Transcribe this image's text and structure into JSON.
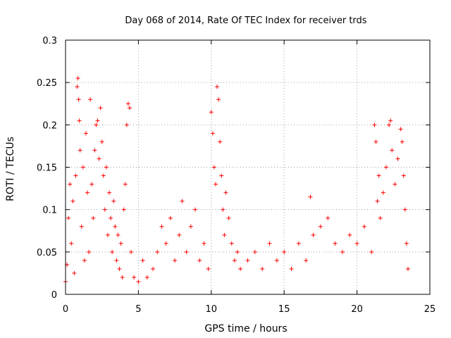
{
  "chart_data": {
    "type": "scatter",
    "title": "Day 068 of 2014, Rate Of TEC Index for receiver trds",
    "xlabel": "GPS time / hours",
    "ylabel": "ROTI / TECUs",
    "xlim": [
      0,
      25
    ],
    "ylim": [
      0,
      0.3
    ],
    "x_ticks": [
      0,
      5,
      10,
      15,
      20,
      25
    ],
    "x_tick_labels": [
      "0",
      "5",
      "10",
      "15",
      "20",
      "25"
    ],
    "y_ticks": [
      0,
      0.05,
      0.1,
      0.15,
      0.2,
      0.25,
      0.3
    ],
    "y_tick_labels": [
      "0",
      "0.05",
      "0.1",
      "0.15",
      "0.2",
      "0.25",
      "0.3"
    ],
    "grid": true,
    "marker": "+",
    "series": [
      {
        "name": "ROTI",
        "color": "#ff0000",
        "points": [
          [
            0.0,
            0.015
          ],
          [
            0.1,
            0.035
          ],
          [
            0.2,
            0.09
          ],
          [
            0.3,
            0.13
          ],
          [
            0.4,
            0.06
          ],
          [
            0.5,
            0.11
          ],
          [
            0.6,
            0.025
          ],
          [
            0.7,
            0.14
          ],
          [
            0.8,
            0.245
          ],
          [
            0.85,
            0.255
          ],
          [
            0.9,
            0.23
          ],
          [
            0.95,
            0.205
          ],
          [
            1.0,
            0.17
          ],
          [
            1.1,
            0.08
          ],
          [
            1.2,
            0.15
          ],
          [
            1.3,
            0.04
          ],
          [
            1.4,
            0.19
          ],
          [
            1.5,
            0.12
          ],
          [
            1.6,
            0.05
          ],
          [
            1.7,
            0.23
          ],
          [
            1.8,
            0.13
          ],
          [
            1.9,
            0.09
          ],
          [
            2.0,
            0.17
          ],
          [
            2.1,
            0.2
          ],
          [
            2.2,
            0.205
          ],
          [
            2.3,
            0.16
          ],
          [
            2.4,
            0.22
          ],
          [
            2.5,
            0.18
          ],
          [
            2.6,
            0.14
          ],
          [
            2.7,
            0.1
          ],
          [
            2.8,
            0.15
          ],
          [
            2.9,
            0.07
          ],
          [
            3.0,
            0.12
          ],
          [
            3.1,
            0.09
          ],
          [
            3.2,
            0.05
          ],
          [
            3.3,
            0.11
          ],
          [
            3.4,
            0.08
          ],
          [
            3.5,
            0.04
          ],
          [
            3.6,
            0.07
          ],
          [
            3.7,
            0.03
          ],
          [
            3.8,
            0.06
          ],
          [
            3.9,
            0.02
          ],
          [
            4.0,
            0.1
          ],
          [
            4.1,
            0.13
          ],
          [
            4.2,
            0.2
          ],
          [
            4.3,
            0.225
          ],
          [
            4.4,
            0.22
          ],
          [
            4.5,
            0.05
          ],
          [
            4.7,
            0.02
          ],
          [
            5.0,
            0.015
          ],
          [
            5.3,
            0.04
          ],
          [
            5.6,
            0.02
          ],
          [
            6.0,
            0.03
          ],
          [
            6.3,
            0.05
          ],
          [
            6.6,
            0.08
          ],
          [
            6.9,
            0.06
          ],
          [
            7.2,
            0.09
          ],
          [
            7.5,
            0.04
          ],
          [
            7.8,
            0.07
          ],
          [
            8.0,
            0.11
          ],
          [
            8.3,
            0.05
          ],
          [
            8.6,
            0.08
          ],
          [
            8.9,
            0.1
          ],
          [
            9.2,
            0.04
          ],
          [
            9.5,
            0.06
          ],
          [
            9.8,
            0.03
          ],
          [
            10.0,
            0.215
          ],
          [
            10.1,
            0.19
          ],
          [
            10.2,
            0.15
          ],
          [
            10.3,
            0.13
          ],
          [
            10.4,
            0.245
          ],
          [
            10.5,
            0.23
          ],
          [
            10.6,
            0.18
          ],
          [
            10.7,
            0.14
          ],
          [
            10.8,
            0.1
          ],
          [
            10.9,
            0.07
          ],
          [
            11.0,
            0.12
          ],
          [
            11.2,
            0.09
          ],
          [
            11.4,
            0.06
          ],
          [
            11.6,
            0.04
          ],
          [
            11.8,
            0.05
          ],
          [
            12.0,
            0.03
          ],
          [
            12.5,
            0.04
          ],
          [
            13.0,
            0.05
          ],
          [
            13.5,
            0.03
          ],
          [
            14.0,
            0.06
          ],
          [
            14.5,
            0.04
          ],
          [
            15.0,
            0.05
          ],
          [
            15.5,
            0.03
          ],
          [
            16.0,
            0.06
          ],
          [
            16.5,
            0.04
          ],
          [
            16.8,
            0.115
          ],
          [
            17.0,
            0.07
          ],
          [
            17.5,
            0.08
          ],
          [
            18.0,
            0.09
          ],
          [
            18.5,
            0.06
          ],
          [
            19.0,
            0.05
          ],
          [
            19.5,
            0.07
          ],
          [
            20.0,
            0.06
          ],
          [
            20.5,
            0.08
          ],
          [
            21.0,
            0.05
          ],
          [
            21.2,
            0.2
          ],
          [
            21.3,
            0.18
          ],
          [
            21.4,
            0.11
          ],
          [
            21.5,
            0.14
          ],
          [
            21.6,
            0.09
          ],
          [
            21.8,
            0.12
          ],
          [
            22.0,
            0.15
          ],
          [
            22.2,
            0.2
          ],
          [
            22.3,
            0.205
          ],
          [
            22.4,
            0.17
          ],
          [
            22.6,
            0.13
          ],
          [
            22.8,
            0.16
          ],
          [
            23.0,
            0.195
          ],
          [
            23.1,
            0.18
          ],
          [
            23.2,
            0.14
          ],
          [
            23.3,
            0.1
          ],
          [
            23.4,
            0.06
          ],
          [
            23.5,
            0.03
          ]
        ]
      }
    ]
  }
}
